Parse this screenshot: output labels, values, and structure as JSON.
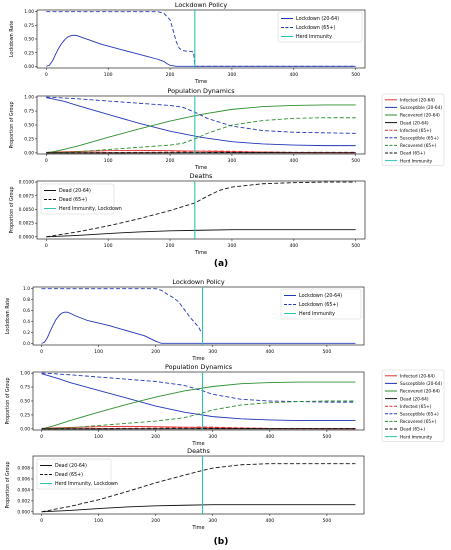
{
  "figure": {
    "panel_labels": [
      "(a)",
      "(b)"
    ]
  },
  "colors": {
    "blue": "#2236b8",
    "red": "#e0312f",
    "green": "#2e8f2e",
    "black": "#111111",
    "cyan": "#2cc3b3"
  },
  "chart_data": [
    {
      "panel": "(a)",
      "type": "line",
      "title": "Lockdown Policy",
      "xlabel": "Time",
      "ylabel": "Lockdown Rate",
      "xlim": [
        -15,
        515
      ],
      "ylim": [
        -0.03,
        1.03
      ],
      "xticks": [
        0,
        100,
        200,
        300,
        400,
        500
      ],
      "yticks": [
        0.0,
        0.25,
        0.5,
        0.75,
        1.0
      ],
      "ytick_labels": [
        "0.00",
        "0.25",
        "0.50",
        "0.75",
        "1.00"
      ],
      "grid": false,
      "legend_position": "upper right",
      "series": [
        {
          "name": "Lockdown (20-64)",
          "color": "blue",
          "style": "solid",
          "x": [
            0,
            5,
            10,
            15,
            20,
            25,
            30,
            35,
            40,
            45,
            50,
            60,
            70,
            80,
            90,
            100,
            120,
            140,
            160,
            180,
            190,
            195,
            200,
            205,
            210,
            220,
            300,
            400,
            500
          ],
          "y": [
            0,
            0.02,
            0.1,
            0.22,
            0.33,
            0.42,
            0.49,
            0.54,
            0.56,
            0.57,
            0.56,
            0.52,
            0.48,
            0.44,
            0.4,
            0.37,
            0.31,
            0.25,
            0.19,
            0.13,
            0.09,
            0.05,
            0.02,
            0.01,
            0,
            0,
            0,
            0,
            0
          ]
        },
        {
          "name": "Lockdown (65+)",
          "color": "blue",
          "style": "dashed",
          "x": [
            0,
            100,
            180,
            190,
            200,
            205,
            210,
            215,
            220,
            225,
            230,
            235,
            238,
            240,
            300,
            400,
            500
          ],
          "y": [
            1,
            1,
            1,
            0.97,
            0.85,
            0.66,
            0.45,
            0.33,
            0.29,
            0.28,
            0.28,
            0.27,
            0.26,
            0,
            0,
            0,
            0
          ]
        },
        {
          "name": "Herd Immunity",
          "color": "cyan",
          "style": "vline",
          "x": [
            240
          ]
        }
      ]
    },
    {
      "panel": "(a)",
      "type": "line",
      "title": "Population Dynamics",
      "xlabel": "Time",
      "ylabel": "Proportion of Group",
      "xlim": [
        -15,
        515
      ],
      "ylim": [
        -0.02,
        1.02
      ],
      "xticks": [
        0,
        100,
        200,
        300,
        400,
        500
      ],
      "yticks": [
        0.0,
        0.25,
        0.5,
        0.75,
        1.0
      ],
      "ytick_labels": [
        "0.00",
        "0.25",
        "0.50",
        "0.75",
        "1.00"
      ],
      "grid": false,
      "legend_position": "outside right",
      "series": [
        {
          "name": "Infected (20-64)",
          "color": "red",
          "style": "solid",
          "x": [
            0,
            50,
            100,
            150,
            200,
            250,
            300,
            400,
            500
          ],
          "y": [
            0.01,
            0.025,
            0.04,
            0.045,
            0.04,
            0.03,
            0.02,
            0.008,
            0.003
          ]
        },
        {
          "name": "Susceptible (20-64)",
          "color": "blue",
          "style": "solid",
          "x": [
            0,
            10,
            30,
            50,
            100,
            150,
            200,
            250,
            300,
            350,
            400,
            450,
            500
          ],
          "y": [
            0.99,
            0.97,
            0.92,
            0.85,
            0.69,
            0.53,
            0.39,
            0.28,
            0.2,
            0.16,
            0.14,
            0.13,
            0.13
          ]
        },
        {
          "name": "Recovered (20-64)",
          "color": "green",
          "style": "solid",
          "x": [
            0,
            20,
            50,
            100,
            150,
            200,
            250,
            300,
            350,
            400,
            450,
            500
          ],
          "y": [
            0,
            0.04,
            0.12,
            0.28,
            0.43,
            0.57,
            0.69,
            0.78,
            0.83,
            0.85,
            0.86,
            0.86
          ]
        },
        {
          "name": "Dead (20-64)",
          "color": "black",
          "style": "solid",
          "x": [
            0,
            100,
            200,
            300,
            400,
            500
          ],
          "y": [
            0,
            0.0003,
            0.0006,
            0.0008,
            0.0009,
            0.0009
          ]
        },
        {
          "name": "Infected (65+)",
          "color": "red",
          "style": "dashed",
          "x": [
            0,
            50,
            100,
            150,
            200,
            240,
            260,
            300,
            350,
            400,
            500
          ],
          "y": [
            0.002,
            0.005,
            0.008,
            0.01,
            0.015,
            0.03,
            0.035,
            0.03,
            0.015,
            0.006,
            0.002
          ]
        },
        {
          "name": "Susceptible (65+)",
          "color": "blue",
          "style": "dashed",
          "x": [
            0,
            20,
            50,
            100,
            150,
            200,
            220,
            240,
            260,
            300,
            350,
            400,
            450,
            500
          ],
          "y": [
            1,
            0.99,
            0.97,
            0.93,
            0.89,
            0.85,
            0.82,
            0.73,
            0.62,
            0.48,
            0.4,
            0.37,
            0.36,
            0.35
          ]
        },
        {
          "name": "Recovered (65+)",
          "color": "green",
          "style": "dashed",
          "x": [
            0,
            50,
            100,
            150,
            200,
            220,
            240,
            260,
            300,
            350,
            400,
            450,
            500
          ],
          "y": [
            0,
            0.02,
            0.06,
            0.1,
            0.14,
            0.17,
            0.25,
            0.35,
            0.5,
            0.58,
            0.62,
            0.63,
            0.63
          ]
        },
        {
          "name": "Dead (65+)",
          "color": "black",
          "style": "dashed",
          "x": [
            0,
            100,
            200,
            240,
            300,
            400,
            500
          ],
          "y": [
            0,
            0.002,
            0.004,
            0.006,
            0.008,
            0.0098,
            0.01
          ]
        },
        {
          "name": "Herd Immunity",
          "color": "cyan",
          "style": "vline",
          "x": [
            240
          ]
        }
      ]
    },
    {
      "panel": "(a)",
      "type": "line",
      "title": "Deaths",
      "xlabel": "Time",
      "ylabel": "Proportion of Group",
      "xlim": [
        -15,
        515
      ],
      "ylim": [
        -0.0004,
        0.0102
      ],
      "xticks": [
        0,
        100,
        200,
        300,
        400,
        500
      ],
      "yticks": [
        0.0,
        0.0025,
        0.005,
        0.0075,
        0.01
      ],
      "ytick_labels": [
        "0.0000",
        "0.0025",
        "0.0050",
        "0.0075",
        "0.0100"
      ],
      "grid": false,
      "legend_position": "upper left",
      "series": [
        {
          "name": "Dead (20-64)",
          "color": "black",
          "style": "solid",
          "x": [
            0,
            50,
            100,
            150,
            200,
            250,
            300,
            400,
            500
          ],
          "y": [
            0,
            0.00025,
            0.0006,
            0.0009,
            0.0011,
            0.0012,
            0.0013,
            0.0013,
            0.0013
          ]
        },
        {
          "name": "Dead (65+)",
          "color": "black",
          "style": "dashed",
          "x": [
            0,
            50,
            100,
            150,
            200,
            240,
            260,
            280,
            300,
            350,
            400,
            450,
            500
          ],
          "y": [
            0,
            0.0009,
            0.002,
            0.0033,
            0.0048,
            0.0062,
            0.0074,
            0.0085,
            0.0091,
            0.0097,
            0.0099,
            0.01,
            0.01
          ]
        },
        {
          "name": "Herd Immunity, Lockdown",
          "color": "cyan",
          "style": "vline",
          "x": [
            240
          ]
        }
      ]
    },
    {
      "panel": "(b)",
      "type": "line",
      "title": "Lockdown Policy",
      "xlabel": "Time",
      "ylabel": "Lockdown Rate",
      "xlim": [
        -15,
        565
      ],
      "ylim": [
        -0.03,
        1.03
      ],
      "xticks": [
        0,
        100,
        200,
        300,
        400,
        500
      ],
      "yticks": [
        0.0,
        0.2,
        0.4,
        0.6,
        0.8,
        1.0
      ],
      "ytick_labels": [
        "0.0",
        "0.2",
        "0.4",
        "0.6",
        "0.8",
        "1.0"
      ],
      "grid": false,
      "legend_position": "upper right",
      "series": [
        {
          "name": "Lockdown (20-64)",
          "color": "blue",
          "style": "solid",
          "x": [
            0,
            5,
            10,
            15,
            20,
            25,
            30,
            35,
            40,
            45,
            50,
            60,
            80,
            100,
            120,
            140,
            160,
            180,
            190,
            200,
            205,
            210,
            220,
            300,
            400,
            500,
            550
          ],
          "y": [
            0,
            0.02,
            0.1,
            0.22,
            0.33,
            0.43,
            0.5,
            0.55,
            0.57,
            0.57,
            0.55,
            0.5,
            0.42,
            0.37,
            0.32,
            0.26,
            0.2,
            0.14,
            0.09,
            0.04,
            0.02,
            0,
            0,
            0,
            0,
            0,
            0
          ]
        },
        {
          "name": "Lockdown (65+)",
          "color": "blue",
          "style": "dashed",
          "x": [
            0,
            100,
            200,
            210,
            220,
            230,
            240,
            250,
            260,
            270,
            275,
            280
          ],
          "y": [
            1,
            1,
            1,
            0.97,
            0.9,
            0.84,
            0.76,
            0.62,
            0.48,
            0.36,
            0.3,
            0.2
          ]
        },
        {
          "name": "Herd Immunity",
          "color": "cyan",
          "style": "vline",
          "x": [
            282
          ]
        }
      ]
    },
    {
      "panel": "(b)",
      "type": "line",
      "title": "Population Dynamics",
      "xlabel": "Time",
      "ylabel": "Proportion of Group",
      "xlim": [
        -15,
        565
      ],
      "ylim": [
        -0.02,
        1.02
      ],
      "xticks": [
        0,
        100,
        200,
        300,
        400,
        500
      ],
      "yticks": [
        0.0,
        0.25,
        0.5,
        0.75,
        1.0
      ],
      "ytick_labels": [
        "0.00",
        "0.25",
        "0.50",
        "0.75",
        "1.00"
      ],
      "grid": false,
      "legend_position": "outside right",
      "series": [
        {
          "name": "Infected (20-64)",
          "color": "red",
          "style": "solid",
          "x": [
            0,
            50,
            100,
            150,
            200,
            250,
            300,
            400,
            550
          ],
          "y": [
            0.01,
            0.025,
            0.04,
            0.045,
            0.04,
            0.03,
            0.02,
            0.008,
            0.003
          ]
        },
        {
          "name": "Susceptible (20-64)",
          "color": "blue",
          "style": "solid",
          "x": [
            0,
            10,
            30,
            50,
            100,
            150,
            200,
            250,
            300,
            350,
            400,
            450,
            500,
            550
          ],
          "y": [
            0.99,
            0.96,
            0.9,
            0.83,
            0.69,
            0.55,
            0.41,
            0.3,
            0.22,
            0.18,
            0.16,
            0.15,
            0.15,
            0.15
          ]
        },
        {
          "name": "Recovered (20-64)",
          "color": "green",
          "style": "solid",
          "x": [
            0,
            20,
            50,
            100,
            150,
            200,
            250,
            300,
            350,
            400,
            450,
            500,
            550
          ],
          "y": [
            0,
            0.05,
            0.15,
            0.3,
            0.44,
            0.57,
            0.68,
            0.76,
            0.81,
            0.83,
            0.84,
            0.84,
            0.84
          ]
        },
        {
          "name": "Dead (20-64)",
          "color": "black",
          "style": "solid",
          "x": [
            0,
            100,
            200,
            300,
            400,
            550
          ],
          "y": [
            0,
            0.0003,
            0.0006,
            0.0008,
            0.0009,
            0.0009
          ]
        },
        {
          "name": "Infected (65+)",
          "color": "red",
          "style": "dashed",
          "x": [
            0,
            50,
            100,
            150,
            200,
            250,
            280,
            300,
            350,
            400,
            550
          ],
          "y": [
            0.002,
            0.005,
            0.008,
            0.01,
            0.015,
            0.025,
            0.035,
            0.032,
            0.018,
            0.008,
            0.002
          ]
        },
        {
          "name": "Susceptible (65+)",
          "color": "blue",
          "style": "dashed",
          "x": [
            0,
            20,
            50,
            100,
            150,
            200,
            250,
            280,
            300,
            350,
            400,
            450,
            500,
            550
          ],
          "y": [
            1,
            0.99,
            0.97,
            0.93,
            0.89,
            0.85,
            0.78,
            0.69,
            0.62,
            0.53,
            0.5,
            0.49,
            0.48,
            0.48
          ]
        },
        {
          "name": "Recovered (65+)",
          "color": "green",
          "style": "dashed",
          "x": [
            0,
            50,
            100,
            150,
            200,
            250,
            280,
            300,
            350,
            400,
            450,
            500,
            550
          ],
          "y": [
            0,
            0.02,
            0.06,
            0.1,
            0.14,
            0.2,
            0.28,
            0.34,
            0.43,
            0.47,
            0.49,
            0.5,
            0.5
          ]
        },
        {
          "name": "Dead (65+)",
          "color": "black",
          "style": "dashed",
          "x": [
            0,
            100,
            200,
            280,
            350,
            450,
            550
          ],
          "y": [
            0,
            0.002,
            0.004,
            0.007,
            0.0085,
            0.0088,
            0.0088
          ]
        },
        {
          "name": "Herd Immunity",
          "color": "cyan",
          "style": "vline",
          "x": [
            282
          ]
        }
      ]
    },
    {
      "panel": "(b)",
      "type": "line",
      "title": "Deaths",
      "xlabel": "Time",
      "ylabel": "Proportion of Group",
      "xlim": [
        -15,
        565
      ],
      "ylim": [
        -0.0004,
        0.0102
      ],
      "xticks": [
        0,
        100,
        200,
        300,
        400,
        500
      ],
      "yticks": [
        0.0,
        0.002,
        0.004,
        0.006,
        0.008
      ],
      "ytick_labels": [
        "0.000",
        "0.002",
        "0.004",
        "0.006",
        "0.008"
      ],
      "grid": false,
      "legend_position": "upper left",
      "series": [
        {
          "name": "Dead (20-64)",
          "color": "black",
          "style": "solid",
          "x": [
            0,
            50,
            100,
            150,
            200,
            250,
            300,
            400,
            550
          ],
          "y": [
            0,
            0.00025,
            0.0006,
            0.0009,
            0.0011,
            0.0012,
            0.0013,
            0.0013,
            0.0013
          ]
        },
        {
          "name": "Dead (65+)",
          "color": "black",
          "style": "dashed",
          "x": [
            0,
            50,
            100,
            150,
            200,
            250,
            280,
            300,
            350,
            400,
            450,
            500,
            550
          ],
          "y": [
            0,
            0.001,
            0.0022,
            0.0037,
            0.0053,
            0.0067,
            0.0075,
            0.008,
            0.0086,
            0.0088,
            0.0088,
            0.0088,
            0.0088
          ]
        },
        {
          "name": "Herd Immunity, Lockdown",
          "color": "cyan",
          "style": "vline",
          "x": [
            282
          ]
        }
      ]
    }
  ]
}
